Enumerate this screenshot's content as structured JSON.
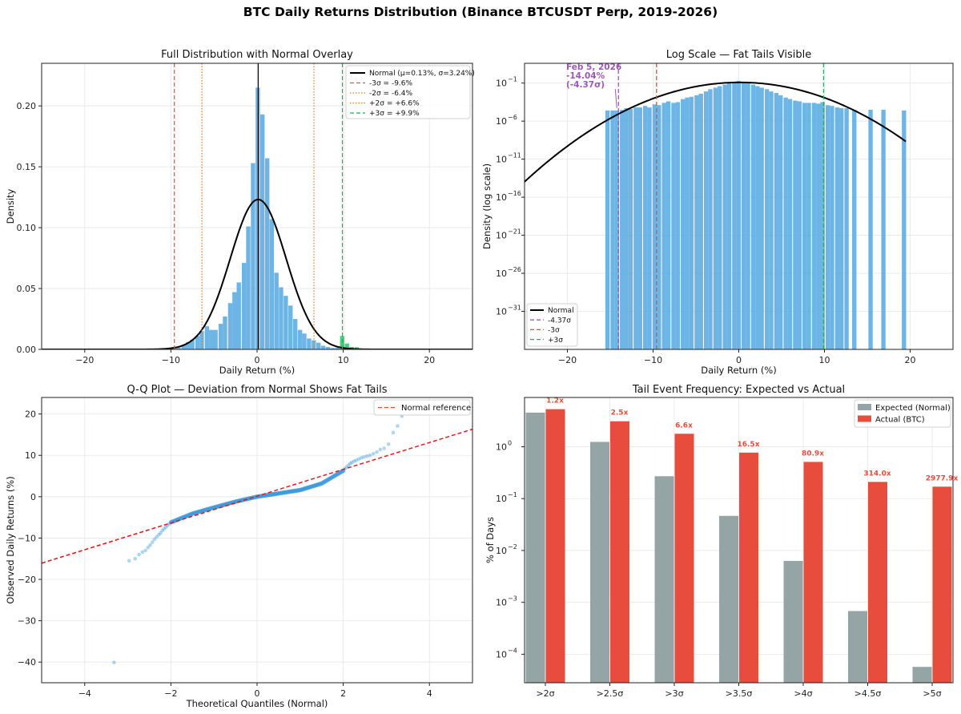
{
  "suptitle": "BTC Daily Returns Distribution (Binance BTCUSDT Perp, 2019-2026)",
  "colors": {
    "hist": "#5dade2",
    "hist_pos_tail": "#2ecc71",
    "hist_neg_tail": "#a6c7d5",
    "normal_line": "#000000",
    "red": "#e74c3c",
    "orange": "#e67e22",
    "green": "#27ae60",
    "purple": "#9b59b6",
    "gray": "#95a5a6",
    "qq_point": "#3498db",
    "qq_ref": "#e8141b"
  },
  "chart_data": [
    {
      "id": "full",
      "type": "bar",
      "title": "Full Distribution with Normal Overlay",
      "xlabel": "Daily Return (%)",
      "ylabel": "Density",
      "xlim": [
        -25,
        25
      ],
      "ylim": [
        0,
        0.235
      ],
      "xticks": [
        -20,
        -10,
        0,
        10,
        20
      ],
      "yticks": [
        0.0,
        0.05,
        0.1,
        0.15,
        0.2
      ],
      "ytick_labels": [
        "0.00",
        "0.05",
        "0.10",
        "0.15",
        "0.20"
      ],
      "bin_width": 0.54,
      "bins": [
        [
          -15.5,
          0.0003
        ],
        [
          -13.9,
          0.0003
        ],
        [
          -12.8,
          0.0004
        ],
        [
          -11.5,
          0.0005
        ],
        [
          -10.8,
          0.0007
        ],
        [
          -10.2,
          0.0009
        ],
        [
          -9.6,
          0.0022
        ],
        [
          -9.1,
          0.0022
        ],
        [
          -8.5,
          0.004
        ],
        [
          -8.0,
          0.006
        ],
        [
          -7.5,
          0.008
        ],
        [
          -6.9,
          0.011
        ],
        [
          -6.4,
          0.015
        ],
        [
          -5.8,
          0.019
        ],
        [
          -5.3,
          0.016
        ],
        [
          -4.8,
          0.016
        ],
        [
          -4.2,
          0.021
        ],
        [
          -3.7,
          0.027
        ],
        [
          -3.1,
          0.038
        ],
        [
          -2.6,
          0.047
        ],
        [
          -2.1,
          0.055
        ],
        [
          -1.5,
          0.071
        ],
        [
          -1.0,
          0.101
        ],
        [
          -0.45,
          0.153
        ],
        [
          0.1,
          0.215
        ],
        [
          0.64,
          0.193
        ],
        [
          1.2,
          0.157
        ],
        [
          1.73,
          0.107
        ],
        [
          2.27,
          0.063
        ],
        [
          2.8,
          0.051
        ],
        [
          3.35,
          0.044
        ],
        [
          3.9,
          0.036
        ],
        [
          4.45,
          0.025
        ],
        [
          5.0,
          0.016
        ],
        [
          5.5,
          0.013
        ],
        [
          6.05,
          0.009
        ],
        [
          6.6,
          0.0075
        ],
        [
          7.15,
          0.0055
        ],
        [
          7.7,
          0.003
        ],
        [
          8.25,
          0.002
        ],
        [
          8.8,
          0.0012
        ],
        [
          9.35,
          0.0015
        ],
        [
          9.9,
          0.011
        ],
        [
          10.45,
          0.0048
        ],
        [
          11.0,
          0.002
        ],
        [
          11.6,
          0.0018
        ],
        [
          12.1,
          0.0007
        ],
        [
          12.7,
          0.0005
        ],
        [
          13.3,
          0.0004
        ],
        [
          14.4,
          0.0003
        ],
        [
          16.6,
          0.0003
        ],
        [
          19.2,
          0.0003
        ]
      ],
      "normal": {
        "mu": 0.13,
        "sigma": 3.24
      },
      "mean_line_x": 0.13,
      "vlines": [
        {
          "x": -9.6,
          "style": "dashed",
          "color": "red",
          "label": "-3σ = -9.6%"
        },
        {
          "x": -6.4,
          "style": "dotted",
          "color": "orange",
          "label": "-2σ = -6.4%"
        },
        {
          "x": 6.6,
          "style": "dotted",
          "color": "orange",
          "label": "+2σ = +6.6%"
        },
        {
          "x": 9.9,
          "style": "dashed",
          "color": "green",
          "label": "+3σ = +9.9%"
        }
      ],
      "legend": [
        {
          "label": "Normal (μ=0.13%, σ=3.24%)",
          "style": "solid-black"
        },
        {
          "label": "-3σ = -9.6%",
          "style": "dashed-red"
        },
        {
          "label": "-2σ = -6.4%",
          "style": "dotted-orange"
        },
        {
          "label": "+2σ = +6.6%",
          "style": "dotted-orange"
        },
        {
          "label": "+3σ = +9.9%",
          "style": "dashed-green"
        }
      ]
    },
    {
      "id": "log",
      "type": "bar",
      "title": "Log Scale — Fat Tails Visible",
      "xlabel": "Daily Return (%)",
      "ylabel": "Density (log scale)",
      "xlim": [
        -25,
        25
      ],
      "ylog_range": [
        -36,
        1.6
      ],
      "xticks": [
        -20,
        -10,
        0,
        10,
        20
      ],
      "ytick_exponents": [
        -31,
        -26,
        -21,
        -16,
        -11,
        -6,
        -1
      ],
      "ytick_labels": [
        "10",
        "10",
        "10",
        "10",
        "10",
        "10",
        "10"
      ],
      "ytick_sups": [
        "−31",
        "−26",
        "−21",
        "−16",
        "−11",
        "−6",
        "−1"
      ],
      "bin_width": 0.54,
      "bin_floor_log10": -36,
      "bins": [
        [
          -15.3,
          -4.6
        ],
        [
          -14.7,
          -4.6
        ],
        [
          -14.2,
          -4.6
        ],
        [
          -13.6,
          -4.5
        ],
        [
          -13.1,
          -4.3
        ],
        [
          -12.6,
          -4.4
        ],
        [
          -12.0,
          -4.2
        ],
        [
          -11.5,
          -4.2
        ],
        [
          -10.9,
          -4.0
        ],
        [
          -10.4,
          -4.2
        ],
        [
          -9.8,
          -3.8
        ],
        [
          -9.3,
          -3.9
        ],
        [
          -8.7,
          -3.6
        ],
        [
          -8.2,
          -3.4
        ],
        [
          -7.6,
          -3.6
        ],
        [
          -7.1,
          -3.5
        ],
        [
          -6.5,
          -3.1
        ],
        [
          -6.0,
          -2.9
        ],
        [
          -5.5,
          -2.8
        ],
        [
          -4.9,
          -2.6
        ],
        [
          -4.4,
          -2.4
        ],
        [
          -3.8,
          -2.1
        ],
        [
          -3.3,
          -1.8
        ],
        [
          -2.7,
          -1.6
        ],
        [
          -2.2,
          -1.4
        ],
        [
          -1.6,
          -1.2
        ],
        [
          -1.1,
          -1.0
        ],
        [
          -0.5,
          -0.9
        ],
        [
          0.0,
          -0.7
        ],
        [
          0.6,
          -0.9
        ],
        [
          1.1,
          -1.0
        ],
        [
          1.7,
          -1.2
        ],
        [
          2.2,
          -1.4
        ],
        [
          2.7,
          -1.6
        ],
        [
          3.3,
          -1.8
        ],
        [
          3.8,
          -2.1
        ],
        [
          4.4,
          -2.3
        ],
        [
          4.9,
          -2.6
        ],
        [
          5.5,
          -2.9
        ],
        [
          6.0,
          -3.1
        ],
        [
          6.6,
          -3.3
        ],
        [
          7.1,
          -3.4
        ],
        [
          7.7,
          -3.6
        ],
        [
          8.2,
          -3.6
        ],
        [
          8.8,
          -3.6
        ],
        [
          9.3,
          -3.7
        ],
        [
          9.8,
          -3.5
        ],
        [
          10.4,
          -3.9
        ],
        [
          10.9,
          -4.0
        ],
        [
          11.5,
          -4.2
        ],
        [
          12.0,
          -4.3
        ],
        [
          12.6,
          -4.3
        ],
        [
          13.5,
          -4.5
        ],
        [
          15.4,
          -4.5
        ],
        [
          16.9,
          -4.5
        ],
        [
          19.3,
          -4.6
        ]
      ],
      "normal": {
        "mu": 0.13,
        "sigma": 3.24
      },
      "vlines": [
        {
          "x": -14.04,
          "style": "dashed",
          "color": "purple",
          "label": "-4.37σ"
        },
        {
          "x": -9.6,
          "style": "dashed",
          "color": "red",
          "label": "-3σ"
        },
        {
          "x": 9.9,
          "style": "dashed",
          "color": "green",
          "label": "+3σ"
        }
      ],
      "annotation": {
        "lines": [
          "Feb 5, 2026",
          "-14.04%",
          "(-4.37σ)"
        ],
        "x": -14.04,
        "ylog": -4.6
      },
      "legend": [
        {
          "label": "Normal",
          "style": "solid-black"
        },
        {
          "label": "-4.37σ",
          "style": "dashed-purple"
        },
        {
          "label": "-3σ",
          "style": "dashed-red"
        },
        {
          "label": "+3σ",
          "style": "dashed-green"
        }
      ]
    },
    {
      "id": "qq",
      "type": "scatter",
      "title": "Q-Q Plot — Deviation from Normal Shows Fat Tails",
      "xlabel": "Theoretical Quantiles (Normal)",
      "ylabel": "Observed Daily Returns (%)",
      "xlim": [
        -5,
        5
      ],
      "ylim": [
        -45,
        24
      ],
      "xticks": [
        -4,
        -2,
        0,
        2,
        4
      ],
      "yticks": [
        -40,
        -30,
        -20,
        -10,
        0,
        10,
        20
      ],
      "reference": {
        "slope": 3.24,
        "intercept": 0.13,
        "label": "Normal reference"
      },
      "tail_points": [
        [
          -3.32,
          -40.1
        ],
        [
          -2.97,
          -15.5
        ],
        [
          -2.83,
          -15.0
        ],
        [
          -2.74,
          -14.0
        ],
        [
          -2.66,
          -13.4
        ],
        [
          -2.59,
          -13.0
        ],
        [
          -2.53,
          -12.3
        ],
        [
          -2.48,
          -11.7
        ],
        [
          -2.43,
          -11.0
        ],
        [
          -2.38,
          -10.3
        ],
        [
          -2.33,
          -9.7
        ],
        [
          -2.28,
          -9.2
        ],
        [
          -2.24,
          -8.8
        ],
        [
          -2.2,
          -8.2
        ],
        [
          -2.16,
          -7.8
        ],
        [
          -2.12,
          -7.4
        ],
        [
          -2.08,
          -7.0
        ],
        [
          -2.04,
          -6.6
        ],
        [
          -2.0,
          -6.2
        ],
        [
          2.0,
          6.3
        ],
        [
          2.04,
          6.8
        ],
        [
          2.08,
          7.2
        ],
        [
          2.12,
          7.6
        ],
        [
          2.16,
          8.0
        ],
        [
          2.2,
          8.3
        ],
        [
          2.25,
          8.6
        ],
        [
          2.3,
          8.8
        ],
        [
          2.36,
          9.1
        ],
        [
          2.42,
          9.4
        ],
        [
          2.48,
          9.6
        ],
        [
          2.55,
          9.8
        ],
        [
          2.62,
          10.0
        ],
        [
          2.7,
          10.4
        ],
        [
          2.78,
          10.8
        ],
        [
          2.86,
          11.4
        ],
        [
          2.95,
          11.7
        ],
        [
          3.05,
          12.7
        ],
        [
          3.16,
          15.5
        ],
        [
          3.26,
          17.1
        ],
        [
          3.36,
          19.5
        ]
      ],
      "core_curve": [
        [
          -2.0,
          -6.2
        ],
        [
          -1.5,
          -4.1
        ],
        [
          -1.0,
          -2.6
        ],
        [
          -0.5,
          -1.2
        ],
        [
          0.0,
          0.0
        ],
        [
          0.5,
          0.8
        ],
        [
          1.0,
          1.6
        ],
        [
          1.5,
          3.2
        ],
        [
          2.0,
          6.3
        ]
      ],
      "legend": [
        {
          "label": "Normal reference",
          "style": "dashed-red"
        }
      ]
    },
    {
      "id": "tail",
      "type": "bar",
      "title": "Tail Event Frequency: Expected vs Actual",
      "ylabel": "% of Days",
      "categories": [
        ">2σ",
        ">2.5σ",
        ">3σ",
        ">3.5σ",
        ">4σ",
        ">4.5σ",
        ">5σ"
      ],
      "ylog_range": [
        -4.55,
        0.95
      ],
      "ytick_exponents": [
        -4,
        -3,
        -2,
        -1,
        0
      ],
      "ytick_labels": [
        "10",
        "10",
        "10",
        "10",
        "10"
      ],
      "ytick_sups": [
        "−4",
        "−3",
        "−2",
        "−1",
        "0"
      ],
      "series": [
        {
          "name": "Expected (Normal)",
          "color": "gray",
          "values": [
            4.55,
            1.24,
            0.27,
            0.0465,
            0.0063,
            0.00068,
            5.7e-05
          ]
        },
        {
          "name": "Actual (BTC)",
          "color": "red",
          "values": [
            5.3,
            3.1,
            1.78,
            0.77,
            0.51,
            0.21,
            0.17
          ]
        }
      ],
      "ratio_labels": [
        "1.2x",
        "2.5x",
        "6.6x",
        "16.5x",
        "80.9x",
        "314.0x",
        "2977.9x"
      ],
      "legend": [
        {
          "label": "Expected (Normal)",
          "style": "box-gray"
        },
        {
          "label": "Actual (BTC)",
          "style": "box-red"
        }
      ]
    }
  ]
}
